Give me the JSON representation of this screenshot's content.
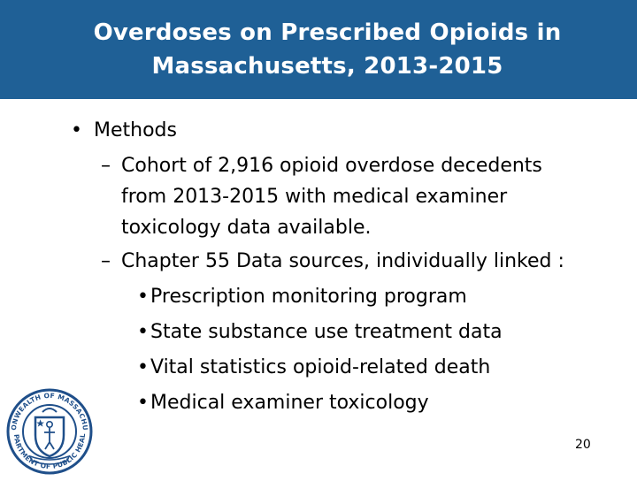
{
  "slide": {
    "title_line1": "Overdoses on Prescribed Opioids in",
    "title_line2": "Massachusetts, 2013-2015",
    "bullet_l1": "•",
    "methods": "Methods",
    "dash": "–",
    "cohort_line1": "Cohort of 2,916 opioid overdose decedents",
    "cohort_line2": "from 2013-2015 with medical examiner",
    "cohort_line3": "toxicology data available.",
    "chapter55": "Chapter 55 Data sources, individually linked :",
    "sources": [
      "Prescription monitoring program",
      "State substance use treatment data",
      "Vital statistics opioid-related death",
      "Medical examiner toxicology"
    ],
    "page_number": "20"
  },
  "seal": {
    "top_text": "COMMONWEALTH OF MASSACHUSETTS",
    "bottom_text": "DEPARTMENT OF PUBLIC HEALTH"
  },
  "colors": {
    "title_bar": "#1f6096",
    "title_text": "#ffffff",
    "seal_blue": "#1f4f8a"
  }
}
